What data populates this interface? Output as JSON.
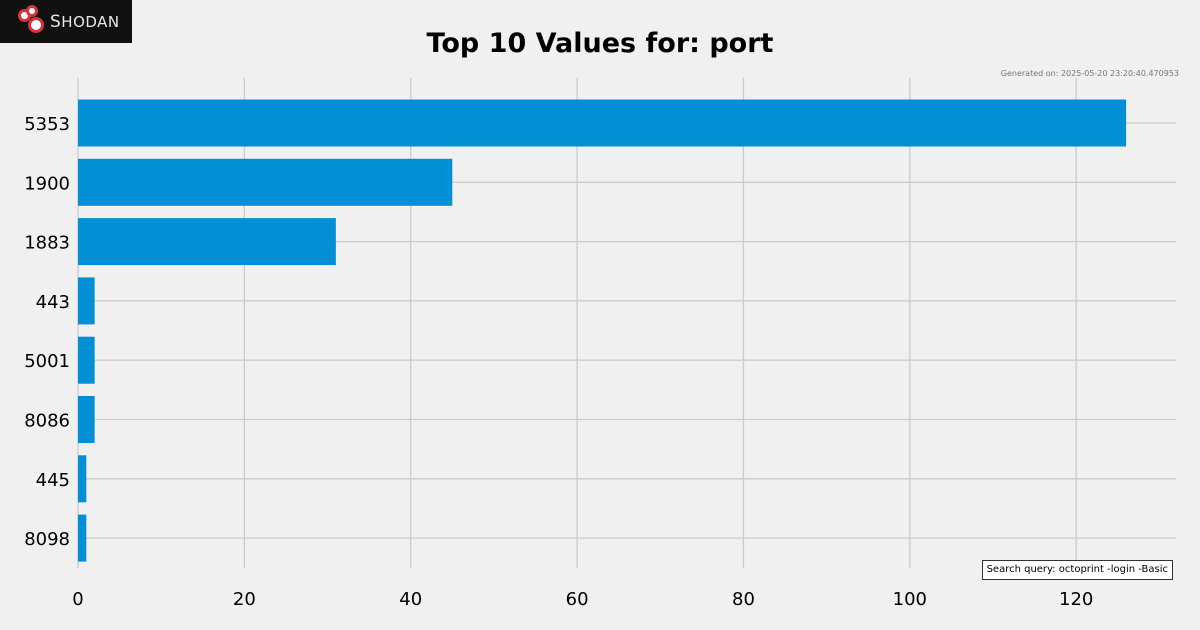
{
  "logo": {
    "text": "Shodan",
    "icon": "shodan-logo-icon"
  },
  "generated": "Generated on: 2025-05-20 23:20:40.470953",
  "search_query": "Search query: octoprint -login -Basic",
  "chart_data": {
    "type": "bar",
    "orientation": "horizontal",
    "title": "Top 10 Values for: port",
    "categories": [
      "5353",
      "1900",
      "1883",
      "443",
      "5001",
      "8086",
      "445",
      "8098"
    ],
    "values": [
      126,
      45,
      31,
      2,
      2,
      2,
      1,
      1
    ],
    "xlim": [
      0,
      132
    ],
    "xticks": [
      0,
      20,
      40,
      60,
      80,
      100,
      120
    ],
    "xlabel": "",
    "ylabel": "",
    "grid": true,
    "legend": "none",
    "bar_color": "#038fd6"
  }
}
